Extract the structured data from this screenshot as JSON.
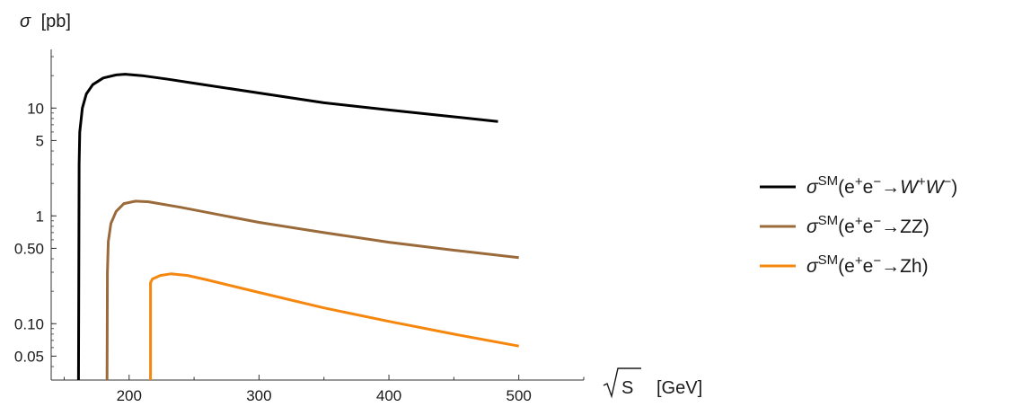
{
  "chart_data": {
    "type": "line",
    "title": "",
    "ylabel_symbol": "σ",
    "ylabel_unit": "[pb]",
    "xlabel_symbol": "S",
    "xlabel_unit": "[GeV]",
    "xlim": [
      140,
      550
    ],
    "ylim": [
      0.03,
      35
    ],
    "y_scale": "log",
    "grid": false,
    "legend_position": "right",
    "x_ticks": [
      200,
      300,
      400,
      500
    ],
    "y_ticks": [
      {
        "value": 0.05,
        "label": "0.05"
      },
      {
        "value": 0.1,
        "label": "0.10"
      },
      {
        "value": 0.5,
        "label": "0.50"
      },
      {
        "value": 1,
        "label": "1"
      },
      {
        "value": 5,
        "label": "5"
      },
      {
        "value": 10,
        "label": "10"
      }
    ],
    "series": [
      {
        "name": "σSM(e+e−→W+W−)",
        "legend": {
          "base": "σ",
          "sup": "SM",
          "pre": "(e",
          "sup1": "+",
          "mid1": "e",
          "sup2": "−",
          "arrow": "→",
          "b1": "W",
          "sup3": "+",
          "b2": "W",
          "sup4": "−",
          "post": ")"
        },
        "color": "#000000",
        "points": [
          [
            161,
            0.03
          ],
          [
            161.5,
            3
          ],
          [
            162,
            6
          ],
          [
            164,
            10
          ],
          [
            167,
            13.5
          ],
          [
            172,
            16.5
          ],
          [
            180,
            19
          ],
          [
            190,
            20.3
          ],
          [
            197,
            20.6
          ],
          [
            210,
            20
          ],
          [
            230,
            18.5
          ],
          [
            250,
            17
          ],
          [
            300,
            13.8
          ],
          [
            350,
            11.2
          ],
          [
            400,
            9.6
          ],
          [
            450,
            8.3
          ],
          [
            484,
            7.5
          ]
        ]
      },
      {
        "name": "σSM(e+e−→ZZ)",
        "legend": {
          "base": "σ",
          "sup": "SM",
          "pre": "(e",
          "sup1": "+",
          "mid1": "e",
          "sup2": "−",
          "arrow": "→",
          "b1": "ZZ",
          "post": ")"
        },
        "color": "#9b6a3a",
        "points": [
          [
            183,
            0.03
          ],
          [
            183.3,
            0.3
          ],
          [
            184,
            0.58
          ],
          [
            186,
            0.85
          ],
          [
            190,
            1.1
          ],
          [
            196,
            1.3
          ],
          [
            205,
            1.37
          ],
          [
            215,
            1.35
          ],
          [
            240,
            1.2
          ],
          [
            270,
            1.02
          ],
          [
            300,
            0.87
          ],
          [
            350,
            0.7
          ],
          [
            400,
            0.57
          ],
          [
            450,
            0.48
          ],
          [
            500,
            0.41
          ]
        ]
      },
      {
        "name": "σSM(e+e−→Zh)",
        "legend": {
          "base": "σ",
          "sup": "SM",
          "pre": "(e",
          "sup1": "+",
          "mid1": "e",
          "sup2": "−",
          "arrow": "→",
          "b1": "Zh",
          "post": ")"
        },
        "color": "#f5870f",
        "points": [
          [
            216.5,
            0.03
          ],
          [
            216.5,
            0.24
          ],
          [
            218,
            0.26
          ],
          [
            224,
            0.28
          ],
          [
            232,
            0.29
          ],
          [
            245,
            0.28
          ],
          [
            260,
            0.255
          ],
          [
            300,
            0.195
          ],
          [
            350,
            0.14
          ],
          [
            400,
            0.105
          ],
          [
            450,
            0.08
          ],
          [
            500,
            0.062
          ]
        ]
      }
    ]
  }
}
